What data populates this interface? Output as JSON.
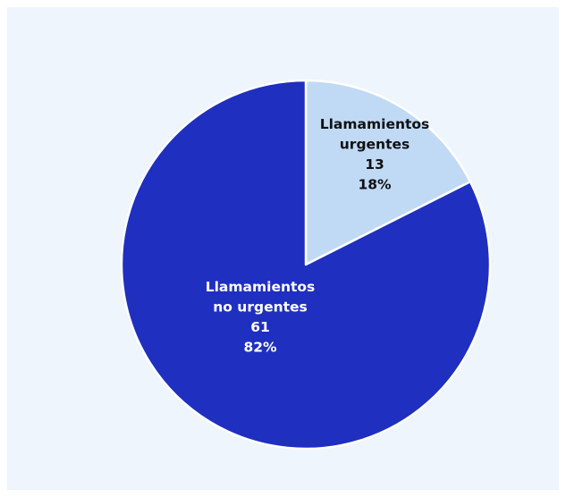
{
  "chart_data": {
    "type": "pie",
    "slices": [
      {
        "label_lines": [
          "Llamamientos",
          "urgentes"
        ],
        "value": 13,
        "percent_label": "18%",
        "color": "#c0daf6",
        "text_color": "#111111"
      },
      {
        "label_lines": [
          "Llamamientos",
          "no urgentes"
        ],
        "value": 61,
        "percent_label": "82%",
        "color": "#1f2fbf",
        "text_color": "#ffffff"
      }
    ],
    "start_angle": "12 o'clock",
    "direction": "clockwise",
    "legend": "none",
    "background_color": "#eef5fc"
  }
}
